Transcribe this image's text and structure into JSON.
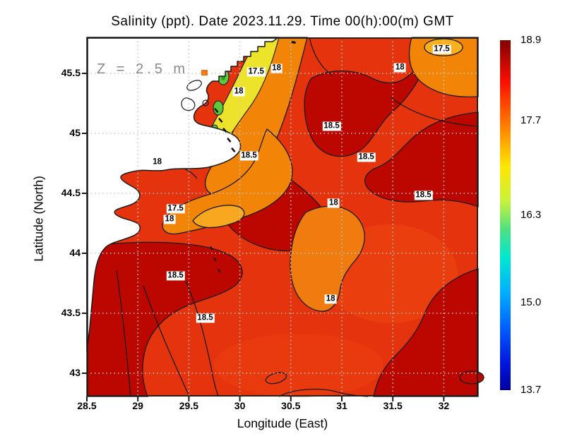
{
  "figure": {
    "title": "Salinity (ppt). Date 2023.11.29. Time 00(h):00(m) GMT",
    "depth_annotation": "Z = 2.5 m"
  },
  "axes": {
    "x": {
      "label": "Longitude (East)",
      "ticks": [
        "28.5",
        "29",
        "29.5",
        "30",
        "30.5",
        "31",
        "31.5",
        "32"
      ]
    },
    "y": {
      "label": "Latitude (North)",
      "ticks": [
        "45.5",
        "45",
        "44.5",
        "44",
        "43.5",
        "43"
      ]
    }
  },
  "colorbar": {
    "ticks": [
      "18.9",
      "17.7",
      "16.3",
      "15.0",
      "13.7"
    ],
    "max": 18.9,
    "min": 13.7
  },
  "chart_data": {
    "type": "heatmap",
    "variable": "Salinity",
    "units": "ppt",
    "date": "2023.11.29",
    "time": "00(h):00(m) GMT",
    "depth_m": 2.5,
    "title": "Salinity (ppt). Date 2023.11.29. Time 00(h):00(m) GMT",
    "xlabel": "Longitude (East)",
    "ylabel": "Latitude (North)",
    "xlim": [
      28.5,
      32.33
    ],
    "ylim": [
      42.8,
      45.8
    ],
    "grid": "dotted 0.5-degree graticule",
    "colormap": "jet",
    "color_range": [
      13.7,
      18.9
    ],
    "colorbar_ticks": [
      18.9,
      17.7,
      16.3,
      15.0,
      13.7
    ],
    "contour_levels": [
      17.5,
      18,
      18.5
    ],
    "contour_labels": [
      {
        "value": "17.5",
        "lon": 31.98,
        "lat": 45.7
      },
      {
        "value": "18",
        "lon": 31.57,
        "lat": 45.55
      },
      {
        "value": "17.5",
        "lon": 30.16,
        "lat": 45.51
      },
      {
        "value": "18",
        "lon": 30.36,
        "lat": 45.54
      },
      {
        "value": "18",
        "lon": 29.99,
        "lat": 45.35
      },
      {
        "value": "18.5",
        "lon": 30.9,
        "lat": 45.06
      },
      {
        "value": "18",
        "lon": 29.19,
        "lat": 44.76
      },
      {
        "value": "18.5",
        "lon": 30.09,
        "lat": 44.81
      },
      {
        "value": "18.5",
        "lon": 31.24,
        "lat": 44.8
      },
      {
        "value": "18.5",
        "lon": 31.8,
        "lat": 44.48
      },
      {
        "value": "17.5",
        "lon": 29.37,
        "lat": 44.37
      },
      {
        "value": "18",
        "lon": 29.31,
        "lat": 44.28
      },
      {
        "value": "18",
        "lon": 30.92,
        "lat": 44.42
      },
      {
        "value": "18.5",
        "lon": 29.37,
        "lat": 43.81
      },
      {
        "value": "18.5",
        "lon": 29.66,
        "lat": 43.46
      },
      {
        "value": "18",
        "lon": 30.89,
        "lat": 43.62
      }
    ],
    "features": [
      "White land mass (western Black Sea coast / Danube delta) in upper-left with black coastline",
      "Low-salinity yellow-green plume (16-17.5 ppt) hugging the delta coast",
      "Orange tongue (17.5-18 ppt) extending southwest near 29.3E 44.3N",
      "Most of basin red to dark red (18-18.9 ppt), dark-red cores above 18.5 ppt",
      "Lighter orange pocket (below 18 ppt) near 30.7E 44.1N and in northeast corner"
    ],
    "palette": {
      "sea_red": "#e5330d",
      "dark_red": "#bc0600",
      "orange": "#f28408",
      "yellow": "#ede32a",
      "green": "#5fc93c",
      "land": "#ffffff",
      "contour": "#1a1a1a",
      "grid": "#c9c9c9"
    }
  }
}
